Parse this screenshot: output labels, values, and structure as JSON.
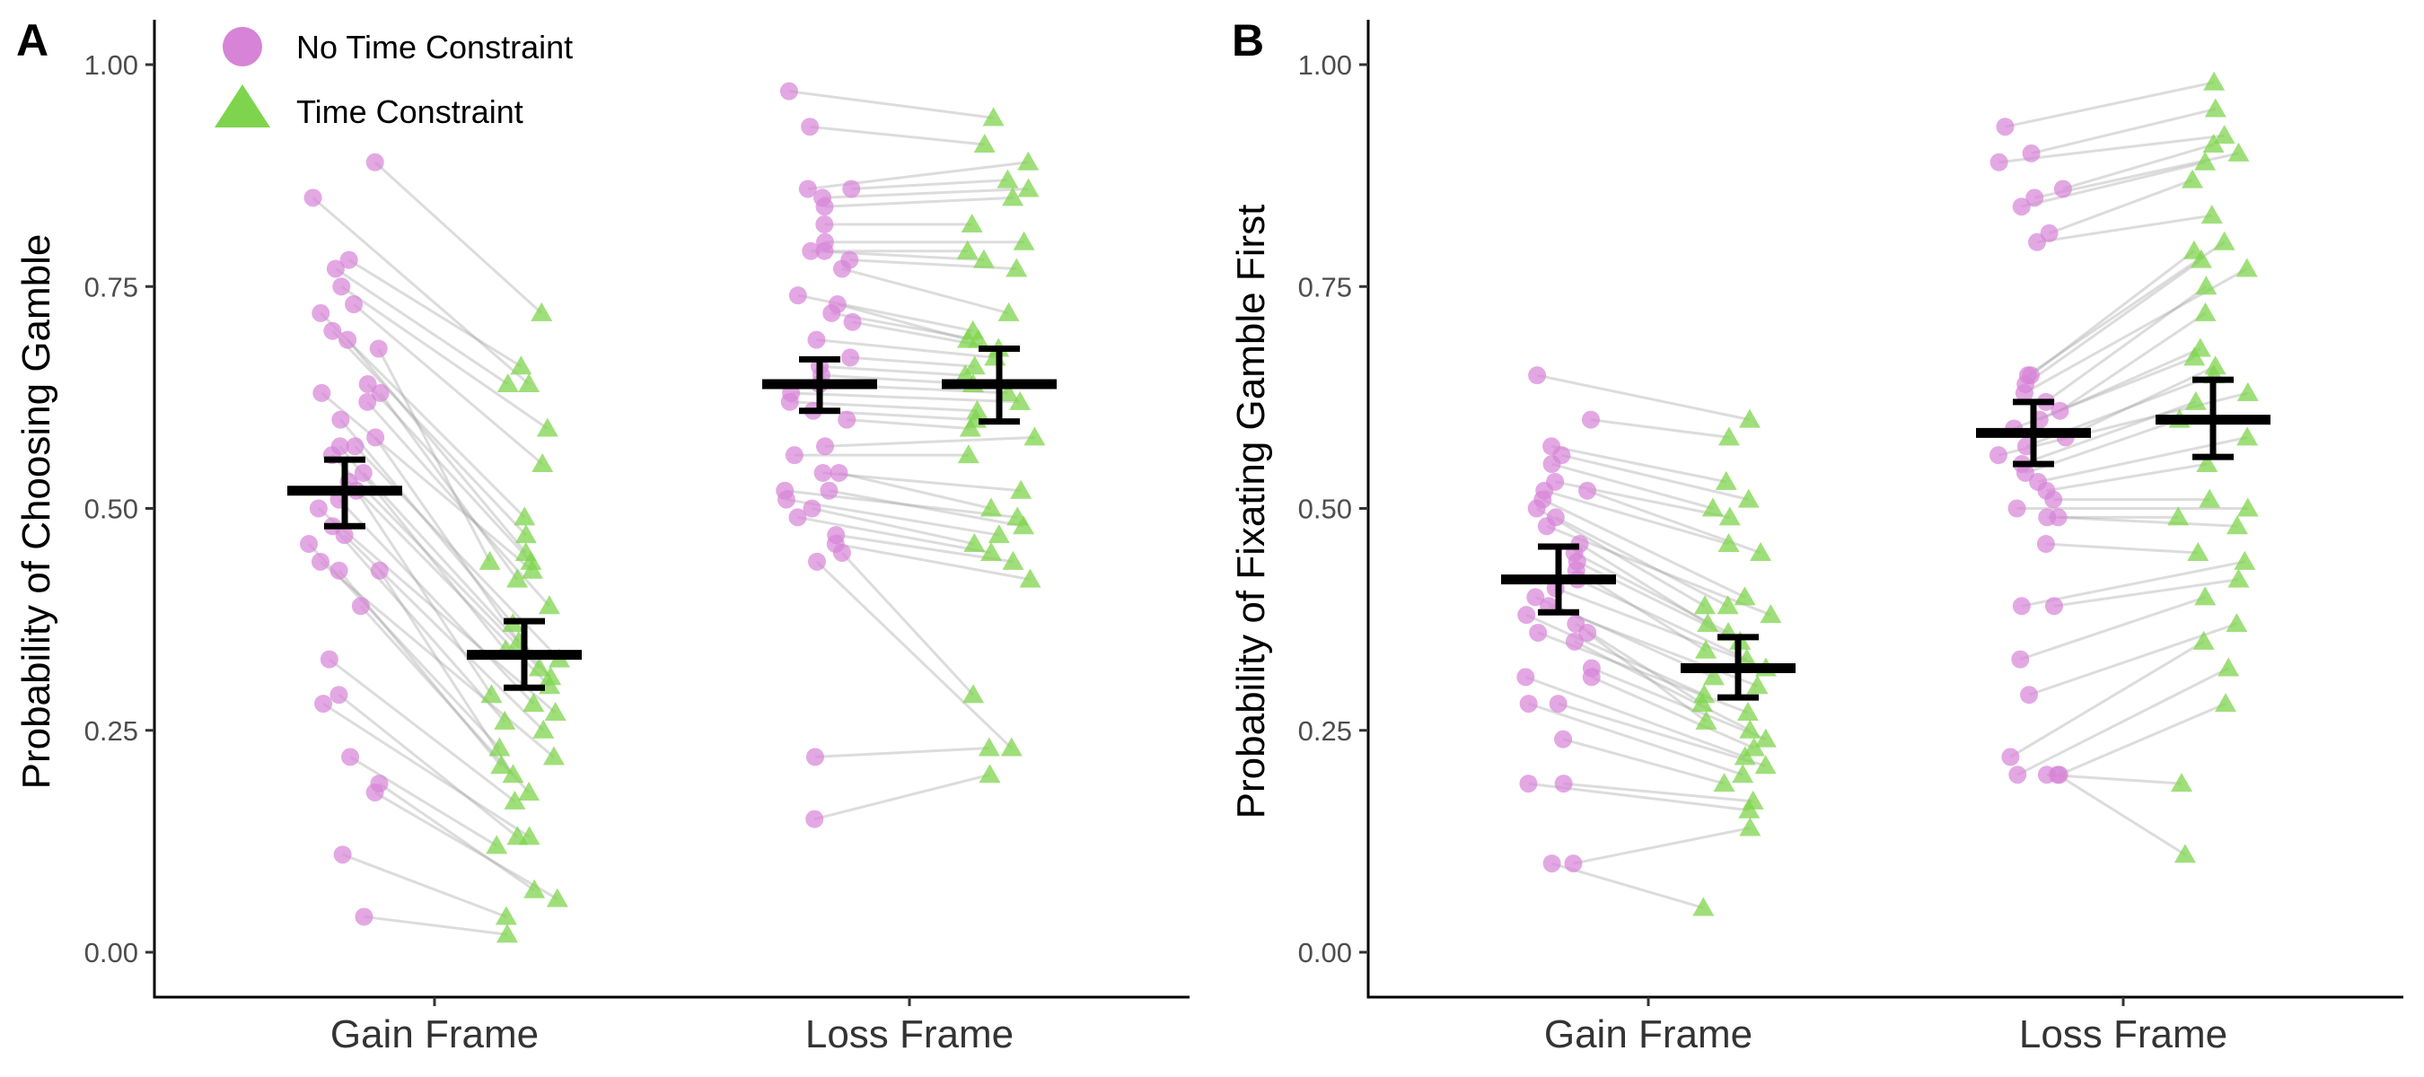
{
  "legend": {
    "items": [
      {
        "label": "No Time Constraint",
        "shape": "circle",
        "color": "#d783d7"
      },
      {
        "label": "Time Constraint",
        "shape": "triangle",
        "color": "#7fd44d"
      }
    ]
  },
  "chart_data": [
    {
      "panel": "A",
      "type": "scatter",
      "ylabel": "Probability of Choosing Gamble",
      "xlabel": "",
      "categories": [
        "Gain Frame",
        "Loss Frame"
      ],
      "ylim": [
        0,
        1
      ],
      "yticks": [
        "0.00",
        "0.25",
        "0.50",
        "0.75",
        "1.00"
      ],
      "grid": false,
      "legend_position": "top-left",
      "summary": [
        {
          "category": "Gain Frame",
          "condition": "No Time Constraint",
          "mean": 0.52,
          "se_low": 0.48,
          "se_high": 0.555
        },
        {
          "category": "Gain Frame",
          "condition": "Time Constraint",
          "mean": 0.335,
          "se_low": 0.298,
          "se_high": 0.373
        },
        {
          "category": "Loss Frame",
          "condition": "No Time Constraint",
          "mean": 0.64,
          "se_low": 0.61,
          "se_high": 0.668
        },
        {
          "category": "Loss Frame",
          "condition": "Time Constraint",
          "mean": 0.64,
          "se_low": 0.598,
          "se_high": 0.68
        }
      ],
      "gain_pairs": [
        [
          0.89,
          0.72
        ],
        [
          0.85,
          0.64
        ],
        [
          0.78,
          0.66
        ],
        [
          0.77,
          0.64
        ],
        [
          0.75,
          0.59
        ],
        [
          0.73,
          0.55
        ],
        [
          0.72,
          0.49
        ],
        [
          0.7,
          0.47
        ],
        [
          0.69,
          0.45
        ],
        [
          0.68,
          0.44
        ],
        [
          0.64,
          0.44
        ],
        [
          0.63,
          0.43
        ],
        [
          0.63,
          0.42
        ],
        [
          0.62,
          0.39
        ],
        [
          0.6,
          0.37
        ],
        [
          0.58,
          0.35
        ],
        [
          0.57,
          0.34
        ],
        [
          0.57,
          0.33
        ],
        [
          0.56,
          0.32
        ],
        [
          0.54,
          0.31
        ],
        [
          0.53,
          0.3
        ],
        [
          0.52,
          0.29
        ],
        [
          0.51,
          0.28
        ],
        [
          0.5,
          0.27
        ],
        [
          0.48,
          0.26
        ],
        [
          0.47,
          0.25
        ],
        [
          0.46,
          0.23
        ],
        [
          0.44,
          0.22
        ],
        [
          0.43,
          0.21
        ],
        [
          0.43,
          0.2
        ],
        [
          0.39,
          0.18
        ],
        [
          0.33,
          0.17
        ],
        [
          0.29,
          0.13
        ],
        [
          0.28,
          0.13
        ],
        [
          0.22,
          0.12
        ],
        [
          0.19,
          0.07
        ],
        [
          0.18,
          0.06
        ],
        [
          0.11,
          0.04
        ],
        [
          0.04,
          0.02
        ]
      ],
      "loss_pairs": [
        [
          0.97,
          0.94
        ],
        [
          0.93,
          0.91
        ],
        [
          0.86,
          0.89
        ],
        [
          0.86,
          0.87
        ],
        [
          0.85,
          0.86
        ],
        [
          0.84,
          0.85
        ],
        [
          0.82,
          0.82
        ],
        [
          0.8,
          0.8
        ],
        [
          0.79,
          0.79
        ],
        [
          0.79,
          0.78
        ],
        [
          0.78,
          0.77
        ],
        [
          0.77,
          0.72
        ],
        [
          0.74,
          0.7
        ],
        [
          0.73,
          0.69
        ],
        [
          0.72,
          0.69
        ],
        [
          0.71,
          0.68
        ],
        [
          0.69,
          0.67
        ],
        [
          0.67,
          0.66
        ],
        [
          0.66,
          0.65
        ],
        [
          0.65,
          0.64
        ],
        [
          0.64,
          0.63
        ],
        [
          0.63,
          0.62
        ],
        [
          0.62,
          0.61
        ],
        [
          0.61,
          0.6
        ],
        [
          0.6,
          0.59
        ],
        [
          0.57,
          0.58
        ],
        [
          0.56,
          0.56
        ],
        [
          0.54,
          0.52
        ],
        [
          0.54,
          0.5
        ],
        [
          0.52,
          0.49
        ],
        [
          0.52,
          0.48
        ],
        [
          0.51,
          0.47
        ],
        [
          0.5,
          0.46
        ],
        [
          0.49,
          0.45
        ],
        [
          0.47,
          0.44
        ],
        [
          0.46,
          0.42
        ],
        [
          0.45,
          0.29
        ],
        [
          0.44,
          0.23
        ],
        [
          0.22,
          0.23
        ],
        [
          0.15,
          0.2
        ]
      ]
    },
    {
      "panel": "B",
      "type": "scatter",
      "ylabel": "Probability of Fixating Gamble First",
      "xlabel": "",
      "categories": [
        "Gain Frame",
        "Loss Frame"
      ],
      "ylim": [
        0,
        1
      ],
      "yticks": [
        "0.00",
        "0.25",
        "0.50",
        "0.75",
        "1.00"
      ],
      "grid": false,
      "summary": [
        {
          "category": "Gain Frame",
          "condition": "No Time Constraint",
          "mean": 0.42,
          "se_low": 0.383,
          "se_high": 0.457
        },
        {
          "category": "Gain Frame",
          "condition": "Time Constraint",
          "mean": 0.32,
          "se_low": 0.287,
          "se_high": 0.355
        },
        {
          "category": "Loss Frame",
          "condition": "No Time Constraint",
          "mean": 0.585,
          "se_low": 0.55,
          "se_high": 0.62
        },
        {
          "category": "Loss Frame",
          "condition": "Time Constraint",
          "mean": 0.6,
          "se_low": 0.558,
          "se_high": 0.645
        }
      ],
      "gain_pairs": [
        [
          0.65,
          0.6
        ],
        [
          0.6,
          0.58
        ],
        [
          0.57,
          0.53
        ],
        [
          0.56,
          0.51
        ],
        [
          0.55,
          0.5
        ],
        [
          0.53,
          0.49
        ],
        [
          0.52,
          0.46
        ],
        [
          0.52,
          0.45
        ],
        [
          0.51,
          0.4
        ],
        [
          0.5,
          0.39
        ],
        [
          0.49,
          0.39
        ],
        [
          0.48,
          0.38
        ],
        [
          0.46,
          0.37
        ],
        [
          0.45,
          0.36
        ],
        [
          0.44,
          0.35
        ],
        [
          0.43,
          0.34
        ],
        [
          0.42,
          0.33
        ],
        [
          0.41,
          0.32
        ],
        [
          0.4,
          0.31
        ],
        [
          0.39,
          0.3
        ],
        [
          0.38,
          0.29
        ],
        [
          0.37,
          0.28
        ],
        [
          0.36,
          0.27
        ],
        [
          0.36,
          0.26
        ],
        [
          0.35,
          0.25
        ],
        [
          0.32,
          0.24
        ],
        [
          0.31,
          0.23
        ],
        [
          0.31,
          0.22
        ],
        [
          0.28,
          0.21
        ],
        [
          0.28,
          0.2
        ],
        [
          0.24,
          0.19
        ],
        [
          0.19,
          0.17
        ],
        [
          0.19,
          0.16
        ],
        [
          0.1,
          0.14
        ],
        [
          0.1,
          0.05
        ]
      ],
      "loss_pairs": [
        [
          0.93,
          0.98
        ],
        [
          0.9,
          0.95
        ],
        [
          0.89,
          0.92
        ],
        [
          0.86,
          0.91
        ],
        [
          0.85,
          0.9
        ],
        [
          0.84,
          0.89
        ],
        [
          0.81,
          0.87
        ],
        [
          0.8,
          0.83
        ],
        [
          0.65,
          0.8
        ],
        [
          0.65,
          0.79
        ],
        [
          0.64,
          0.78
        ],
        [
          0.63,
          0.77
        ],
        [
          0.62,
          0.75
        ],
        [
          0.61,
          0.72
        ],
        [
          0.6,
          0.68
        ],
        [
          0.59,
          0.67
        ],
        [
          0.58,
          0.66
        ],
        [
          0.57,
          0.65
        ],
        [
          0.56,
          0.63
        ],
        [
          0.55,
          0.62
        ],
        [
          0.54,
          0.6
        ],
        [
          0.53,
          0.58
        ],
        [
          0.52,
          0.55
        ],
        [
          0.51,
          0.51
        ],
        [
          0.5,
          0.5
        ],
        [
          0.49,
          0.49
        ],
        [
          0.49,
          0.48
        ],
        [
          0.46,
          0.45
        ],
        [
          0.39,
          0.44
        ],
        [
          0.39,
          0.42
        ],
        [
          0.33,
          0.4
        ],
        [
          0.29,
          0.37
        ],
        [
          0.22,
          0.35
        ],
        [
          0.2,
          0.32
        ],
        [
          0.2,
          0.28
        ],
        [
          0.2,
          0.19
        ],
        [
          0.2,
          0.11
        ]
      ]
    }
  ]
}
